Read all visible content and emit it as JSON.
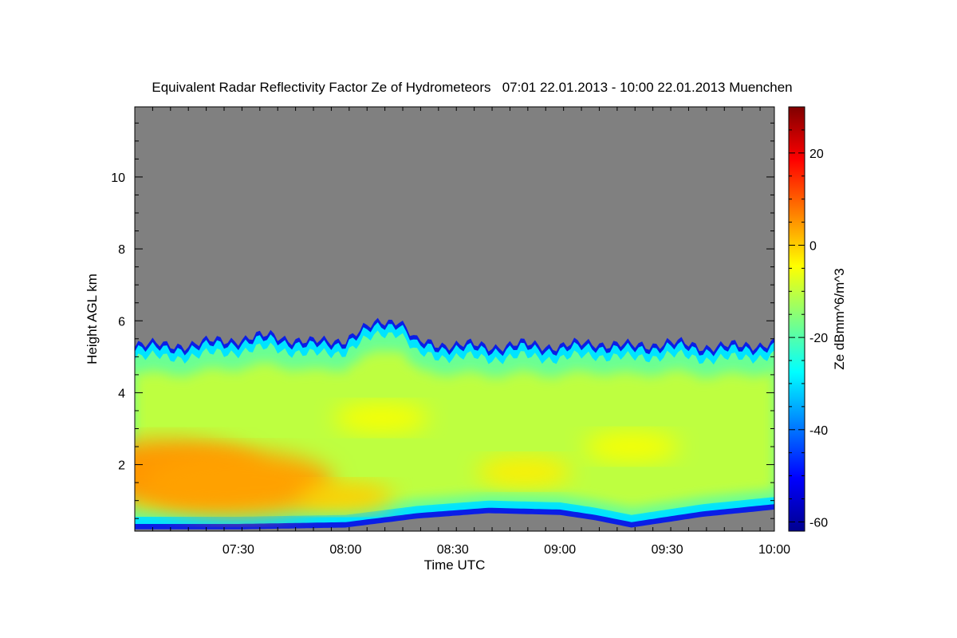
{
  "chart_data": {
    "type": "heatmap",
    "title": "Equivalent Radar Reflectivity Factor Ze of Hydrometeors   07:01 22.01.2013 - 10:00 22.01.2013 Muenchen",
    "xlabel": "Time UTC",
    "ylabel": "Height AGL km",
    "colorbar_label": "Ze dBmm^6/m^3",
    "xlim": [
      "07:01",
      "10:00"
    ],
    "x_ticks": [
      "07:30",
      "08:00",
      "08:30",
      "09:00",
      "09:30",
      "10:00"
    ],
    "ylim": [
      0.15,
      11.95
    ],
    "y_ticks": [
      2,
      4,
      6,
      8,
      10
    ],
    "colorbar_range": [
      -62,
      30
    ],
    "colorbar_ticks": [
      20,
      0,
      -20,
      -40,
      -60
    ],
    "colormap": "jet",
    "background_color": "#808080",
    "echo_top_km": [
      {
        "time": "07:01",
        "value": 5.4
      },
      {
        "time": "07:10",
        "value": 5.3
      },
      {
        "time": "07:20",
        "value": 5.4
      },
      {
        "time": "07:30",
        "value": 5.5
      },
      {
        "time": "07:40",
        "value": 5.6
      },
      {
        "time": "07:50",
        "value": 5.4
      },
      {
        "time": "08:00",
        "value": 5.5
      },
      {
        "time": "08:10",
        "value": 6.0
      },
      {
        "time": "08:15",
        "value": 6.05
      },
      {
        "time": "08:20",
        "value": 5.4
      },
      {
        "time": "08:30",
        "value": 5.35
      },
      {
        "time": "08:40",
        "value": 5.3
      },
      {
        "time": "08:50",
        "value": 5.35
      },
      {
        "time": "09:00",
        "value": 5.3
      },
      {
        "time": "09:10",
        "value": 5.4
      },
      {
        "time": "09:20",
        "value": 5.3
      },
      {
        "time": "09:30",
        "value": 5.4
      },
      {
        "time": "09:40",
        "value": 5.3
      },
      {
        "time": "09:50",
        "value": 5.3
      },
      {
        "time": "10:00",
        "value": 5.4
      }
    ],
    "echo_base_km": [
      {
        "time": "07:01",
        "value": 0.2
      },
      {
        "time": "07:30",
        "value": 0.2
      },
      {
        "time": "08:00",
        "value": 0.25
      },
      {
        "time": "08:20",
        "value": 0.5
      },
      {
        "time": "08:40",
        "value": 0.65
      },
      {
        "time": "09:00",
        "value": 0.6
      },
      {
        "time": "09:10",
        "value": 0.45
      },
      {
        "time": "09:20",
        "value": 0.25
      },
      {
        "time": "09:40",
        "value": 0.55
      },
      {
        "time": "10:00",
        "value": 0.75
      }
    ],
    "reflectivity_cores": [
      {
        "time": "07:10",
        "height_km": 1.8,
        "value_dbz": 5
      },
      {
        "time": "07:30",
        "height_km": 1.5,
        "value_dbz": 4
      },
      {
        "time": "08:00",
        "height_km": 1.1,
        "value_dbz": 0
      },
      {
        "time": "08:10",
        "height_km": 3.3,
        "value_dbz": -5
      },
      {
        "time": "08:50",
        "height_km": 1.8,
        "value_dbz": -3
      },
      {
        "time": "09:20",
        "height_km": 2.5,
        "value_dbz": -5
      }
    ]
  }
}
